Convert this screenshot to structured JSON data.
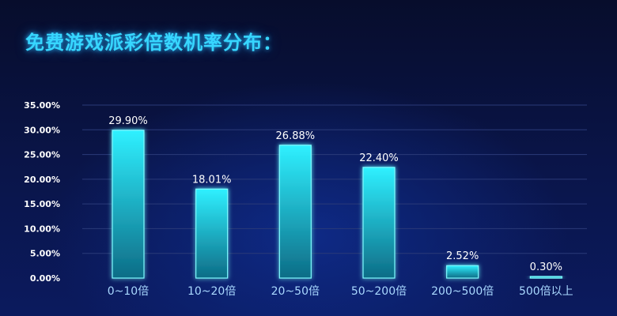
{
  "title": "免费游戏派彩倍数机率分布：",
  "colors": {
    "title": "#37d6ff",
    "bar_top": "#2ff0ff",
    "bar_bottom": "#0d6c86",
    "bar_stroke": "#7ffaff",
    "axis": "#4ad7ff",
    "grid": "#2a3a78"
  },
  "chart_data": {
    "type": "bar",
    "categories": [
      "0~10倍",
      "10~20倍",
      "20~50倍",
      "50~200倍",
      "200~500倍",
      "500倍以上"
    ],
    "values": [
      29.9,
      18.01,
      26.88,
      22.4,
      2.52,
      0.3
    ],
    "value_labels": [
      "29.90%",
      "18.01%",
      "26.88%",
      "22.40%",
      "2.52%",
      "0.30%"
    ],
    "yticks": [
      "0.00%",
      "5.00%",
      "10.00%",
      "15.00%",
      "20.00%",
      "25.00%",
      "30.00%",
      "35.00%"
    ],
    "ylim": [
      0,
      35
    ],
    "grid": true,
    "legend": "none"
  }
}
